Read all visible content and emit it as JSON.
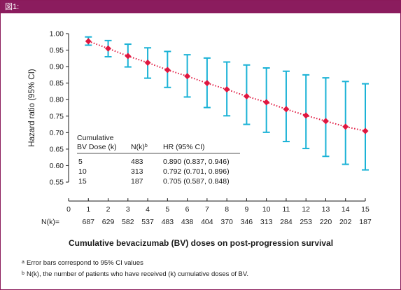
{
  "header": {
    "label": "図1:"
  },
  "chart_data": {
    "type": "scatter",
    "title": "Cumulative bevacizumab (BV) doses on post-progression survival",
    "ylabel": "Hazard ratio (95% CI)",
    "xlabel": "",
    "xlim": [
      0,
      15
    ],
    "ylim": [
      0.55,
      1.0
    ],
    "x_ticks": [
      "0",
      "1",
      "2",
      "3",
      "4",
      "5",
      "6",
      "7",
      "8",
      "9",
      "10",
      "11",
      "12",
      "13",
      "14",
      "15"
    ],
    "y_ticks": [
      "0.55",
      "0.60",
      "0.65",
      "0.70",
      "0.75",
      "0.80",
      "0.85",
      "0.90",
      "0.95",
      "1.00"
    ],
    "x": [
      1,
      2,
      3,
      4,
      5,
      6,
      7,
      8,
      9,
      10,
      11,
      12,
      13,
      14,
      15
    ],
    "hr": [
      0.977,
      0.955,
      0.932,
      0.912,
      0.89,
      0.871,
      0.85,
      0.831,
      0.81,
      0.792,
      0.771,
      0.752,
      0.735,
      0.718,
      0.705
    ],
    "ci_low": [
      0.965,
      0.93,
      0.899,
      0.865,
      0.837,
      0.808,
      0.776,
      0.751,
      0.725,
      0.701,
      0.673,
      0.652,
      0.628,
      0.604,
      0.587
    ],
    "ci_high": [
      0.99,
      0.979,
      0.968,
      0.957,
      0.946,
      0.936,
      0.926,
      0.914,
      0.905,
      0.896,
      0.886,
      0.875,
      0.866,
      0.855,
      0.848
    ],
    "nk_label": "N(k)=",
    "nk": [
      "687",
      "629",
      "582",
      "537",
      "483",
      "438",
      "404",
      "370",
      "346",
      "313",
      "284",
      "253",
      "220",
      "202",
      "187"
    ],
    "colors": {
      "marker": "#e0173f",
      "errorbar": "#1ab2d6",
      "trend": "#e0173f",
      "header": "#8b1c5e"
    }
  },
  "table": {
    "head_col1_line1": "Cumulative",
    "head_col1_line2": "BV Dose (k)",
    "head_col2": "N(k)",
    "head_col2_sup": "b",
    "head_col3": "HR (95% CI)",
    "rows": [
      {
        "k": "5",
        "n": "483",
        "hr": "0.890 (0.837, 0.946)"
      },
      {
        "k": "10",
        "n": "313",
        "hr": "0.792 (0.701, 0.896)"
      },
      {
        "k": "15",
        "n": "187",
        "hr": "0.705 (0.587, 0.848)"
      }
    ]
  },
  "footnotes": [
    {
      "marker": "a",
      "text": "Error bars correspond to 95% CI values"
    },
    {
      "marker": "b",
      "text": "N(k), the number of patients who have received (k) cumulative doses of BV."
    }
  ]
}
